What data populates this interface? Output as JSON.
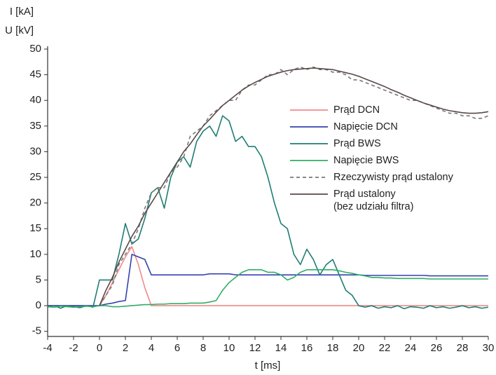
{
  "chart_data": {
    "type": "line",
    "ylabel_lines": [
      "I [kA]",
      "U [kV]"
    ],
    "xlabel": "t [ms]",
    "x": [
      -4,
      -3.5,
      -3,
      -2.5,
      -2,
      -1.5,
      -1,
      -0.5,
      0,
      0.5,
      1,
      1.5,
      2,
      2.5,
      3,
      3.5,
      4,
      4.5,
      5,
      5.5,
      6,
      6.5,
      7,
      7.5,
      8,
      8.5,
      9,
      9.5,
      10,
      10.5,
      11,
      11.5,
      12,
      12.5,
      13,
      13.5,
      14,
      14.5,
      15,
      15.5,
      16,
      16.5,
      17,
      17.5,
      18,
      18.5,
      19,
      19.5,
      20,
      20.5,
      21,
      21.5,
      22,
      22.5,
      23,
      23.5,
      24,
      24.5,
      25,
      25.5,
      26,
      26.5,
      27,
      27.5,
      28,
      28.5,
      29,
      29.5,
      30
    ],
    "series": [
      {
        "name": "Prąd DCN",
        "color": "#f08a8a",
        "values": [
          0,
          0,
          0,
          0,
          0,
          0,
          0,
          0,
          0,
          2,
          4.5,
          7,
          9.5,
          11.5,
          8,
          3.5,
          0,
          0,
          0,
          0,
          0,
          0,
          0,
          0,
          0,
          0,
          0,
          0,
          0,
          0,
          0,
          0,
          0,
          0,
          0,
          0,
          0,
          0,
          0,
          0,
          0,
          0,
          0,
          0,
          0,
          0,
          0,
          0,
          0,
          0,
          0,
          0,
          0,
          0,
          0,
          0,
          0,
          0,
          0,
          0,
          0,
          0,
          0,
          0,
          0,
          0,
          0,
          0,
          0
        ]
      },
      {
        "name": "Napięcie DCN",
        "color": "#3442b0",
        "values": [
          0,
          0,
          0,
          0,
          0,
          0,
          0,
          0,
          0,
          0.3,
          0.5,
          0.8,
          1,
          10,
          9.5,
          9,
          6,
          6,
          6,
          6,
          6,
          6,
          6,
          6,
          6,
          6.2,
          6.2,
          6.2,
          6.2,
          6,
          6,
          6,
          6,
          6,
          6,
          6,
          6,
          6,
          6,
          6,
          6,
          6,
          6,
          6,
          6,
          6,
          6,
          6,
          6,
          5.9,
          5.9,
          5.9,
          5.9,
          5.9,
          5.9,
          5.9,
          5.9,
          5.9,
          5.9,
          5.8,
          5.8,
          5.8,
          5.8,
          5.8,
          5.8,
          5.8,
          5.8,
          5.8,
          5.8
        ]
      },
      {
        "name": "Prąd BWS",
        "color": "#1f7d74",
        "values": [
          -0.3,
          0,
          -0.5,
          0,
          -0.2,
          -0.4,
          0,
          -0.3,
          5,
          5,
          5,
          10,
          16,
          12,
          13,
          17,
          22,
          23,
          19,
          25,
          28,
          29,
          27,
          32,
          34,
          35,
          33,
          37,
          36,
          32,
          33,
          31,
          31,
          29,
          25,
          20,
          16,
          15,
          10,
          8,
          11,
          9,
          6,
          8,
          9,
          6,
          3,
          2,
          0,
          -0.3,
          0,
          -0.5,
          -0.2,
          -0.4,
          0,
          -0.6,
          -0.2,
          -0.3,
          -0.5,
          0,
          -0.4,
          -0.2,
          -0.5,
          -0.3,
          0,
          -0.4,
          -0.2,
          -0.5,
          -0.3
        ]
      },
      {
        "name": "Napięcie BWS",
        "color": "#2fae66",
        "values": [
          -0.2,
          -0.3,
          -0.1,
          -0.2,
          -0.3,
          -0.2,
          -0.1,
          -0.2,
          0,
          0,
          -0.2,
          -0.2,
          -0.1,
          0,
          0.1,
          0.2,
          0.2,
          0.3,
          0.3,
          0.4,
          0.4,
          0.4,
          0.5,
          0.5,
          0.5,
          0.7,
          1,
          3,
          4.5,
          5.5,
          6.5,
          7,
          7,
          7,
          6.5,
          6.5,
          6,
          5,
          5.5,
          6.5,
          7,
          7,
          7,
          7,
          7,
          6.8,
          6.5,
          6.3,
          6,
          5.8,
          5.5,
          5.5,
          5.4,
          5.4,
          5.3,
          5.3,
          5.3,
          5.3,
          5.3,
          5.2,
          5.2,
          5.2,
          5.2,
          5.2,
          5.2,
          5.2,
          5.2,
          5.2,
          5.2
        ]
      },
      {
        "name": "Rzeczywisty prąd ustalony",
        "color": "#777777",
        "style": "dashed",
        "values": [
          null,
          null,
          null,
          null,
          null,
          null,
          null,
          null,
          0,
          2,
          4,
          8,
          10,
          12,
          15,
          19,
          22,
          23,
          23,
          26,
          27,
          29,
          33,
          34,
          35,
          37,
          38,
          39,
          40,
          40,
          42,
          43,
          43,
          44,
          45,
          45,
          46,
          45,
          46,
          46.5,
          46,
          46.5,
          46,
          46,
          45.5,
          45.5,
          45,
          44,
          44,
          43.5,
          43,
          42.5,
          42,
          41.5,
          41,
          40.5,
          40,
          40,
          39.5,
          39,
          38.5,
          38,
          37.5,
          37.5,
          37,
          37,
          36.5,
          36.5,
          37
        ]
      },
      {
        "name": "Prąd ustalony\n(bez udziału filtra)",
        "color": "#5a4a48",
        "values": [
          null,
          null,
          null,
          null,
          null,
          null,
          null,
          null,
          0,
          3,
          5.5,
          8.5,
          11,
          13.5,
          15.5,
          18,
          20,
          22,
          24,
          26,
          28,
          30,
          31.5,
          33.3,
          35,
          36.3,
          37.7,
          39,
          40,
          41,
          42,
          42.8,
          43.5,
          44.1,
          44.7,
          45.1,
          45.5,
          45.8,
          46,
          46.1,
          46.2,
          46.3,
          46.2,
          46.1,
          46,
          45.7,
          45.4,
          45.1,
          44.7,
          44.2,
          43.7,
          43.2,
          42.7,
          42.1,
          41.6,
          41,
          40.5,
          40,
          39.5,
          39.1,
          38.7,
          38.3,
          38,
          37.8,
          37.6,
          37.5,
          37.5,
          37.6,
          37.8
        ]
      }
    ],
    "xlim": [
      -4,
      30
    ],
    "xticks": [
      -4,
      -2,
      0,
      2,
      4,
      6,
      8,
      10,
      12,
      14,
      16,
      18,
      20,
      22,
      24,
      26,
      28,
      30
    ],
    "ylim": [
      -6,
      50
    ],
    "yticks": [
      -5,
      0,
      5,
      10,
      15,
      20,
      25,
      30,
      35,
      40,
      45,
      50
    ],
    "grid": false
  }
}
